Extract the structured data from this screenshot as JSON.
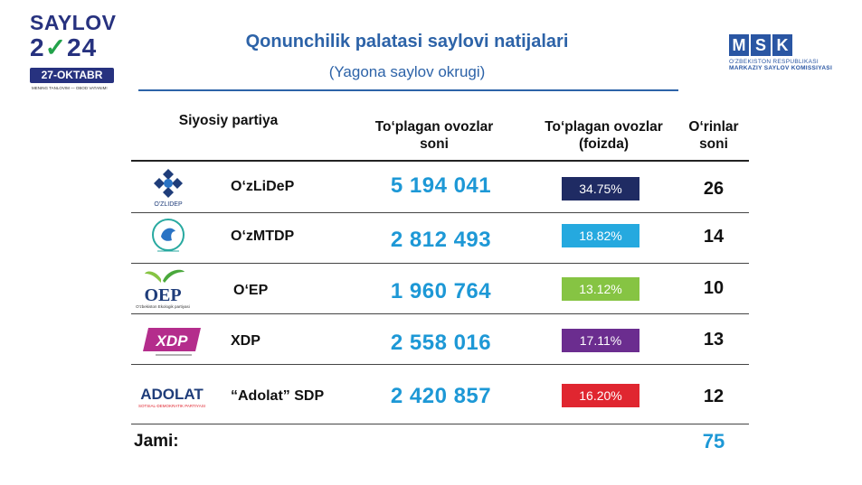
{
  "header": {
    "logo_left": {
      "line1": "SAYLOV",
      "line2_a": "2",
      "line2_check": "✓",
      "line2_b": "24",
      "date": "27-OKTABR",
      "motto": "MENING TANLOVIM — OBOD VATANIM!"
    },
    "title": "Qonunchilik palatasi saylovi natijalari",
    "subtitle": "(Yagona saylov okrugi)",
    "logo_right": {
      "letters": [
        "M",
        "S",
        "K"
      ],
      "line1": "O'ZBEKISTON RESPUBLIKASI",
      "line2": "MARKAZIY SAYLOV KOMISSIYASI"
    }
  },
  "table": {
    "columns": {
      "party": "Siyosiy partiya",
      "votes": "To‘plagan ovozlar soni",
      "pct": "To‘plagan ovozlar (foizda)",
      "seats": "O‘rinlar soni"
    },
    "rows": [
      {
        "logo_text": "O'ZLIDEP",
        "name": "O‘zLiDeP",
        "votes": "5 194 041",
        "pct": "34.75%",
        "pct_color": "#1f2b63",
        "seats": "26"
      },
      {
        "logo_text": "",
        "name": "O‘zMTDP",
        "votes": "2 812 493",
        "pct": "18.82%",
        "pct_color": "#25a9df",
        "seats": "14"
      },
      {
        "logo_text": "OEP",
        "logo_sub": "O'zbekiston Ekologik partiyasi",
        "name": "O‘EP",
        "votes": "1 960 764",
        "pct": "13.12%",
        "pct_color": "#86c443",
        "seats": "10"
      },
      {
        "logo_text": "XDP",
        "name": "XDP",
        "votes": "2 558 016",
        "pct": "17.11%",
        "pct_color": "#6b2d8f",
        "seats": "13"
      },
      {
        "logo_text": "ADOLAT",
        "logo_sub": "SOTSIAL-DEMOKRATIK PARTIYASI",
        "name": "“Adolat” SDP",
        "votes": "2 420 857",
        "pct": "16.20%",
        "pct_color": "#e02630",
        "seats": "12"
      }
    ],
    "total_label": "Jami:",
    "total_seats": "75"
  }
}
